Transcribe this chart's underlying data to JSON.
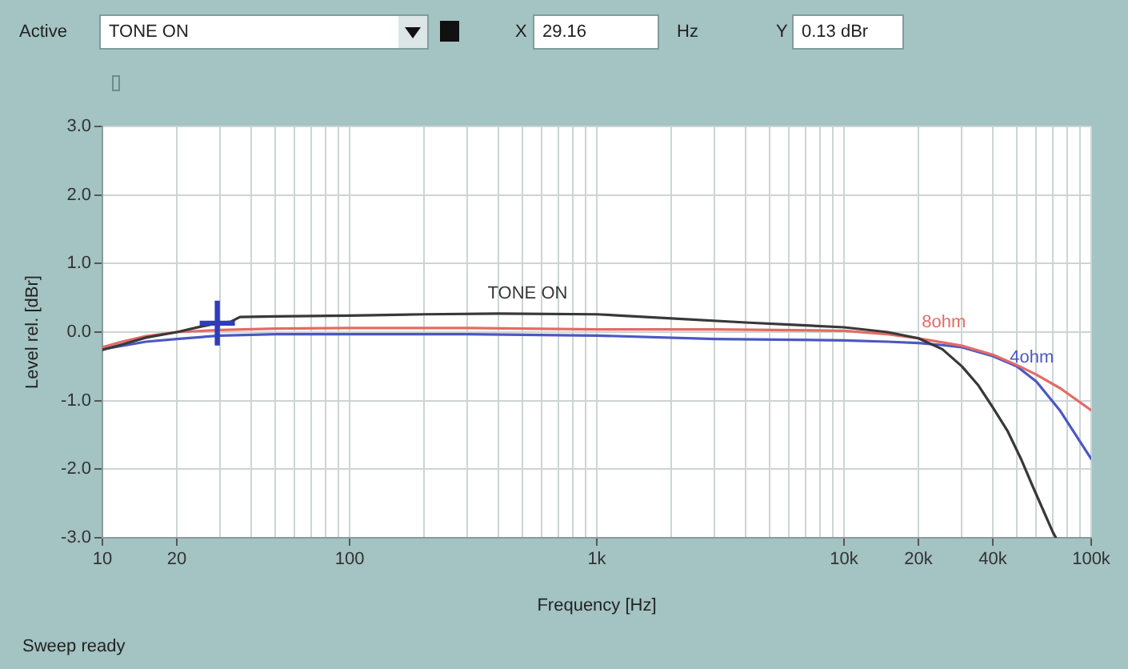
{
  "chart_data": {
    "type": "line",
    "xlabel": "Frequency [Hz]",
    "ylabel": "Level rel. [dBr]",
    "log": "x",
    "grid": true,
    "legend": false,
    "xlim": [
      10,
      100000
    ],
    "ylim": [
      -3,
      3
    ],
    "xticks": [
      10,
      20,
      {
        "value": 30,
        "label": null
      },
      {
        "value": 40,
        "label": null
      },
      {
        "value": 50,
        "label": null
      },
      {
        "value": 60,
        "label": null
      },
      {
        "value": 70,
        "label": null
      },
      {
        "value": 80,
        "label": null
      },
      {
        "value": 90,
        "label": null
      },
      100,
      {
        "value": 200,
        "label": null
      },
      {
        "value": 300,
        "label": null
      },
      {
        "value": 400,
        "label": null
      },
      {
        "value": 500,
        "label": null
      },
      {
        "value": 600,
        "label": null
      },
      {
        "value": 700,
        "label": null
      },
      {
        "value": 800,
        "label": null
      },
      {
        "value": 900,
        "label": null
      },
      {
        "value": 1000,
        "label": "1k"
      },
      {
        "value": 2000,
        "label": null
      },
      {
        "value": 3000,
        "label": null
      },
      {
        "value": 4000,
        "label": null
      },
      {
        "value": 5000,
        "label": null
      },
      {
        "value": 6000,
        "label": null
      },
      {
        "value": 7000,
        "label": null
      },
      {
        "value": 8000,
        "label": null
      },
      {
        "value": 9000,
        "label": null
      },
      {
        "value": 10000,
        "label": "10k"
      },
      {
        "value": 20000,
        "label": "20k"
      },
      {
        "value": 30000,
        "label": null
      },
      {
        "value": 40000,
        "label": "40k"
      },
      {
        "value": 50000,
        "label": null
      },
      {
        "value": 60000,
        "label": null
      },
      {
        "value": 70000,
        "label": null
      },
      {
        "value": 80000,
        "label": null
      },
      {
        "value": 90000,
        "label": null
      },
      {
        "value": 100000,
        "label": "100k"
      }
    ],
    "yticks": [
      {
        "value": 3,
        "label": "3.0"
      },
      {
        "value": 2,
        "label": "2.0"
      },
      {
        "value": 1,
        "label": "1.0"
      },
      {
        "value": 0,
        "label": "0.0"
      },
      {
        "value": -1,
        "label": "-1.0"
      },
      {
        "value": -2,
        "label": "-2.0"
      },
      {
        "value": -3,
        "label": "-3.0"
      }
    ],
    "series": [
      {
        "name": "TONE ON",
        "color": "#383838",
        "x": [
          10,
          12,
          15,
          20,
          25,
          29.16,
          33,
          36,
          50,
          100,
          200,
          400,
          1000,
          2000,
          4000,
          6000,
          10000,
          15000,
          20000,
          25000,
          30000,
          35000,
          40000,
          46000,
          52000,
          58000,
          64000,
          70000,
          72000
        ],
        "values": [
          -0.26,
          -0.18,
          -0.08,
          0.0,
          0.08,
          0.13,
          0.15,
          0.22,
          0.23,
          0.24,
          0.26,
          0.27,
          0.26,
          0.2,
          0.14,
          0.11,
          0.07,
          0.0,
          -0.09,
          -0.25,
          -0.5,
          -0.78,
          -1.1,
          -1.45,
          -1.85,
          -2.25,
          -2.6,
          -2.92,
          -3.0
        ]
      },
      {
        "name": "8ohm",
        "color": "#e36b66",
        "x": [
          10,
          12,
          15,
          20,
          30,
          50,
          100,
          300,
          1000,
          3000,
          10000,
          15000,
          20000,
          25000,
          30000,
          40000,
          50000,
          60000,
          75000,
          100000
        ],
        "values": [
          -0.22,
          -0.14,
          -0.06,
          0.0,
          0.03,
          0.05,
          0.06,
          0.06,
          0.04,
          0.04,
          0.02,
          -0.03,
          -0.09,
          -0.15,
          -0.2,
          -0.33,
          -0.48,
          -0.62,
          -0.82,
          -1.14
        ]
      },
      {
        "name": "4ohm",
        "color": "#4b58c2",
        "x": [
          10,
          12,
          15,
          20,
          30,
          50,
          100,
          300,
          1000,
          3000,
          10000,
          15000,
          20000,
          25000,
          30000,
          40000,
          50000,
          60000,
          75000,
          100000
        ],
        "values": [
          -0.25,
          -0.2,
          -0.14,
          -0.1,
          -0.05,
          -0.03,
          -0.03,
          -0.03,
          -0.05,
          -0.1,
          -0.12,
          -0.14,
          -0.16,
          -0.19,
          -0.22,
          -0.35,
          -0.5,
          -0.72,
          -1.15,
          -1.85
        ]
      },
      {
        "type": "scatter",
        "color": "#2f3db8",
        "marker": "cross",
        "x": [
          29.16
        ],
        "values": [
          0.13
        ]
      }
    ],
    "annotations": [
      "Active",
      "TONE ON",
      "X",
      "29.16",
      "Hz",
      "Y",
      "0.13 dBr",
      "Sweep ready"
    ]
  }
}
